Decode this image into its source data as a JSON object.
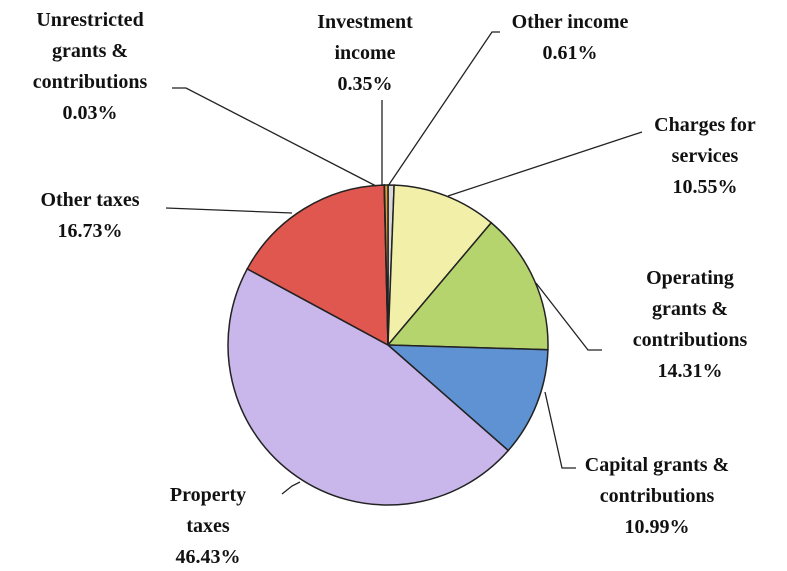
{
  "chart_data": {
    "type": "pie",
    "categories": [
      "Other income",
      "Charges for services",
      "Operating grants & contributions",
      "Capital grants & contributions",
      "Property taxes",
      "Other taxes",
      "Unrestricted grants & contributions",
      "Investment income"
    ],
    "values": [
      0.61,
      10.55,
      14.31,
      10.99,
      46.43,
      16.73,
      0.03,
      0.35
    ],
    "value_labels": [
      "0.61%",
      "10.55%",
      "14.31%",
      "10.99%",
      "46.43%",
      "16.73%",
      "0.03%",
      "0.35%"
    ],
    "colors": [
      "#d9d9d9",
      "#f2f0a8",
      "#b6d46e",
      "#5f92d2",
      "#c9b6ea",
      "#e0574f",
      "#8a6ab0",
      "#e6a030"
    ]
  }
}
